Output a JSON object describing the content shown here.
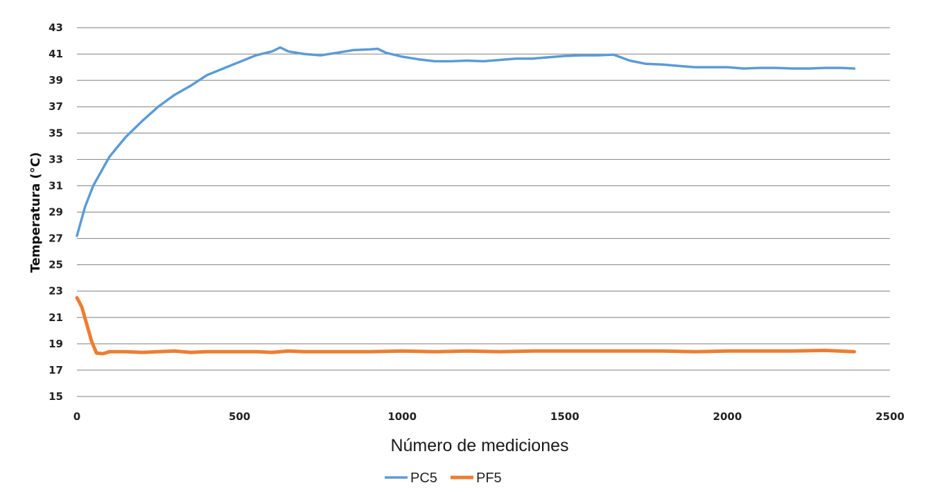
{
  "chart_data": {
    "type": "line",
    "title": "",
    "xlabel": "Número de mediciones",
    "ylabel": "Temperatura (°C)",
    "xlim": [
      0,
      2500
    ],
    "ylim": [
      15,
      43
    ],
    "x_ticks": [
      0,
      500,
      1000,
      1500,
      2000,
      2500
    ],
    "y_ticks": [
      15,
      17,
      19,
      21,
      23,
      25,
      27,
      29,
      31,
      33,
      35,
      37,
      39,
      41,
      43
    ],
    "grid": "horizontal",
    "legend_position": "bottom",
    "series": [
      {
        "name": "PC5",
        "color": "#5b9bd5",
        "points": [
          [
            0,
            27.2
          ],
          [
            25,
            29.4
          ],
          [
            50,
            31.0
          ],
          [
            100,
            33.2
          ],
          [
            150,
            34.7
          ],
          [
            200,
            35.9
          ],
          [
            250,
            37.0
          ],
          [
            300,
            37.9
          ],
          [
            350,
            38.6
          ],
          [
            400,
            39.4
          ],
          [
            450,
            39.9
          ],
          [
            500,
            40.4
          ],
          [
            550,
            40.9
          ],
          [
            600,
            41.2
          ],
          [
            625,
            41.5
          ],
          [
            650,
            41.2
          ],
          [
            700,
            41.0
          ],
          [
            750,
            40.9
          ],
          [
            800,
            41.1
          ],
          [
            850,
            41.3
          ],
          [
            900,
            41.35
          ],
          [
            925,
            41.4
          ],
          [
            950,
            41.1
          ],
          [
            1000,
            40.8
          ],
          [
            1050,
            40.6
          ],
          [
            1100,
            40.45
          ],
          [
            1150,
            40.45
          ],
          [
            1200,
            40.5
          ],
          [
            1250,
            40.45
          ],
          [
            1300,
            40.55
          ],
          [
            1350,
            40.65
          ],
          [
            1400,
            40.65
          ],
          [
            1450,
            40.75
          ],
          [
            1500,
            40.85
          ],
          [
            1550,
            40.9
          ],
          [
            1600,
            40.9
          ],
          [
            1650,
            40.95
          ],
          [
            1700,
            40.5
          ],
          [
            1750,
            40.25
          ],
          [
            1800,
            40.2
          ],
          [
            1850,
            40.1
          ],
          [
            1900,
            40.0
          ],
          [
            1950,
            40.0
          ],
          [
            2000,
            40.0
          ],
          [
            2050,
            39.9
          ],
          [
            2100,
            39.95
          ],
          [
            2150,
            39.95
          ],
          [
            2200,
            39.9
          ],
          [
            2250,
            39.9
          ],
          [
            2300,
            39.95
          ],
          [
            2350,
            39.95
          ],
          [
            2390,
            39.9
          ]
        ]
      },
      {
        "name": "PF5",
        "color": "#ed7d31",
        "points": [
          [
            0,
            22.5
          ],
          [
            15,
            21.8
          ],
          [
            30,
            20.5
          ],
          [
            45,
            19.2
          ],
          [
            60,
            18.3
          ],
          [
            80,
            18.25
          ],
          [
            100,
            18.4
          ],
          [
            150,
            18.4
          ],
          [
            200,
            18.35
          ],
          [
            250,
            18.4
          ],
          [
            300,
            18.45
          ],
          [
            350,
            18.35
          ],
          [
            400,
            18.4
          ],
          [
            450,
            18.4
          ],
          [
            500,
            18.4
          ],
          [
            550,
            18.4
          ],
          [
            600,
            18.35
          ],
          [
            650,
            18.45
          ],
          [
            700,
            18.4
          ],
          [
            750,
            18.4
          ],
          [
            800,
            18.4
          ],
          [
            900,
            18.4
          ],
          [
            1000,
            18.45
          ],
          [
            1100,
            18.4
          ],
          [
            1200,
            18.45
          ],
          [
            1300,
            18.4
          ],
          [
            1400,
            18.45
          ],
          [
            1500,
            18.45
          ],
          [
            1600,
            18.45
          ],
          [
            1700,
            18.45
          ],
          [
            1800,
            18.45
          ],
          [
            1900,
            18.4
          ],
          [
            2000,
            18.45
          ],
          [
            2100,
            18.45
          ],
          [
            2200,
            18.45
          ],
          [
            2300,
            18.5
          ],
          [
            2390,
            18.4
          ]
        ]
      }
    ]
  }
}
